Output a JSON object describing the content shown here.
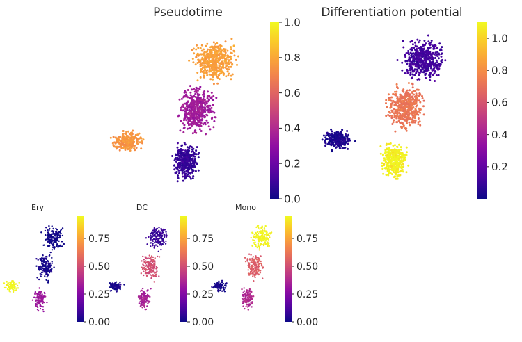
{
  "chart_data": [
    {
      "type": "scatter",
      "title": "Pseudotime",
      "colormap": "plasma",
      "color_range": [
        0.0,
        1.0
      ],
      "colorbar_ticks": [
        "0.0",
        "0.2",
        "0.4",
        "0.6",
        "0.8",
        "1.0"
      ],
      "shape": "big",
      "regions": [
        {
          "name": "left arm",
          "value": 0.75
        },
        {
          "name": "bottom stem",
          "value": 0.08
        },
        {
          "name": "middle body",
          "value": 0.35
        },
        {
          "name": "upper blob",
          "value": 0.78
        }
      ]
    },
    {
      "type": "scatter",
      "title": "Differentiation potential",
      "colormap": "plasma",
      "color_range": [
        0.0,
        1.1
      ],
      "colorbar_ticks": [
        "0.2",
        "0.4",
        "0.6",
        "0.8",
        "1.0"
      ],
      "shape": "big",
      "regions": [
        {
          "name": "left arm",
          "value": 0.04
        },
        {
          "name": "bottom stem",
          "value": 1.08
        },
        {
          "name": "middle body",
          "value": 0.72
        },
        {
          "name": "upper blob",
          "value": 0.12
        }
      ]
    },
    {
      "type": "scatter",
      "title": "Ery",
      "colormap": "plasma",
      "color_range": [
        0.0,
        0.95
      ],
      "colorbar_ticks": [
        "0.00",
        "0.25",
        "0.50",
        "0.75"
      ],
      "shape": "small",
      "regions": [
        {
          "name": "left arm",
          "value": 0.95
        },
        {
          "name": "bottom stem",
          "value": 0.32
        },
        {
          "name": "middle body",
          "value": 0.02
        },
        {
          "name": "upper blob",
          "value": 0.0
        }
      ]
    },
    {
      "type": "scatter",
      "title": "DC",
      "colormap": "plasma",
      "color_range": [
        0.0,
        0.95
      ],
      "colorbar_ticks": [
        "0.00",
        "0.25",
        "0.50",
        "0.75"
      ],
      "shape": "small",
      "regions": [
        {
          "name": "left arm",
          "value": 0.02
        },
        {
          "name": "bottom stem",
          "value": 0.35
        },
        {
          "name": "middle body",
          "value": 0.5
        },
        {
          "name": "upper blob",
          "value": 0.08
        }
      ]
    },
    {
      "type": "scatter",
      "title": "Mono",
      "colormap": "plasma",
      "color_range": [
        0.0,
        0.95
      ],
      "colorbar_ticks": [
        "0.00",
        "0.25",
        "0.50",
        "0.75"
      ],
      "shape": "small",
      "regions": [
        {
          "name": "left arm",
          "value": 0.02
        },
        {
          "name": "bottom stem",
          "value": 0.38
        },
        {
          "name": "middle body",
          "value": 0.55
        },
        {
          "name": "upper blob",
          "value": 0.94
        }
      ]
    }
  ]
}
